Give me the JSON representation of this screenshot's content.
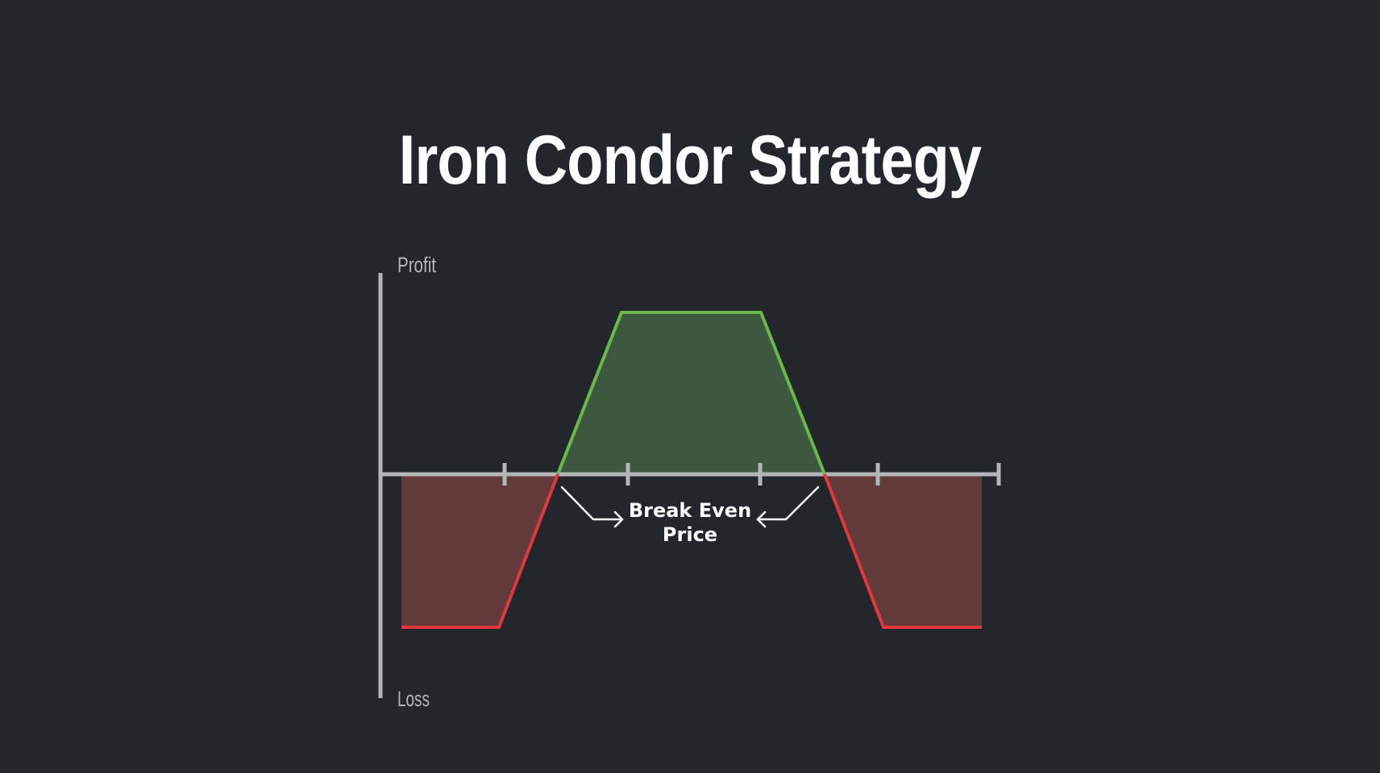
{
  "title": "Iron Condor Strategy",
  "axis": {
    "y_top_label": "Profit",
    "y_bottom_label": "Loss"
  },
  "annotation": {
    "line1": "Break Even",
    "line2": "Price"
  },
  "colors": {
    "background": "#23262b",
    "profit_line": "#6ab84a",
    "profit_fill": "#3e5840",
    "loss_line": "#e2373f",
    "loss_fill": "#633a3a",
    "axis": "#b5b6b9"
  }
}
